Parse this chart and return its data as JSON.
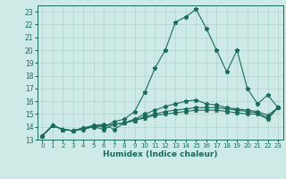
{
  "title": "",
  "xlabel": "Humidex (Indice chaleur)",
  "xlim": [
    -0.5,
    23.5
  ],
  "ylim": [
    13,
    23.5
  ],
  "yticks": [
    13,
    14,
    15,
    16,
    17,
    18,
    19,
    20,
    21,
    22,
    23
  ],
  "xticks": [
    0,
    1,
    2,
    3,
    4,
    5,
    6,
    7,
    8,
    9,
    10,
    11,
    12,
    13,
    14,
    15,
    16,
    17,
    18,
    19,
    20,
    21,
    22,
    23
  ],
  "background_color": "#ceeae6",
  "line_color": "#1a6b5a",
  "grid_color": "#aed4ce",
  "line1": [
    13.3,
    14.1,
    13.8,
    13.7,
    13.9,
    14.1,
    14.0,
    14.4,
    14.6,
    15.2,
    16.7,
    18.6,
    20.0,
    22.2,
    22.6,
    23.2,
    21.7,
    20.0,
    18.3,
    20.0,
    17.0,
    15.8,
    16.5,
    15.5
  ],
  "line2": [
    13.3,
    14.1,
    13.8,
    13.7,
    13.9,
    14.1,
    14.2,
    13.8,
    14.3,
    14.6,
    15.0,
    15.3,
    15.6,
    15.8,
    16.0,
    16.1,
    15.8,
    15.7,
    15.5,
    15.4,
    15.3,
    15.2,
    14.9,
    15.5
  ],
  "line3": [
    13.3,
    14.1,
    13.8,
    13.7,
    13.9,
    14.0,
    14.1,
    14.2,
    14.3,
    14.5,
    14.8,
    15.0,
    15.2,
    15.3,
    15.4,
    15.5,
    15.5,
    15.5,
    15.4,
    15.3,
    15.2,
    15.1,
    14.7,
    15.5
  ],
  "line4": [
    13.3,
    14.1,
    13.8,
    13.7,
    13.8,
    14.0,
    13.8,
    14.2,
    14.3,
    14.5,
    14.7,
    14.9,
    15.0,
    15.1,
    15.2,
    15.3,
    15.3,
    15.3,
    15.2,
    15.1,
    15.0,
    15.0,
    14.6,
    15.5
  ]
}
